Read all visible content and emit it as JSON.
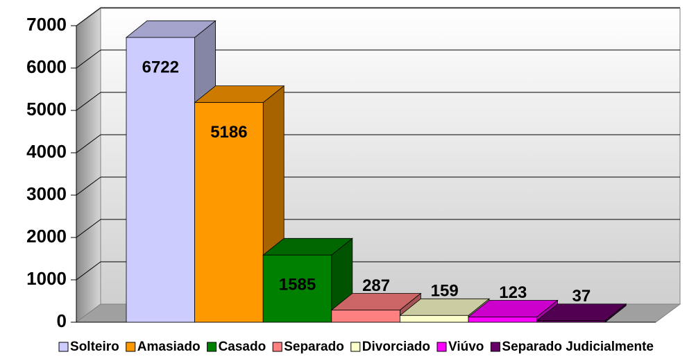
{
  "chart_data": {
    "type": "bar3d",
    "categories": [
      "Solteiro",
      "Amasiado",
      "Casado",
      "Separado",
      "Divorciado",
      "Viúvo",
      "Separado Judicialmente"
    ],
    "values": [
      6722,
      5186,
      1585,
      287,
      159,
      123,
      37
    ],
    "colors": [
      "#ccccff",
      "#ff9900",
      "#008000",
      "#ff8080",
      "#ffffcc",
      "#ff00ff",
      "#660066"
    ],
    "ylim": [
      0,
      7000
    ],
    "yticks": [
      0,
      1000,
      2000,
      3000,
      4000,
      5000,
      6000,
      7000
    ],
    "grid": true,
    "legend": "bottom"
  }
}
